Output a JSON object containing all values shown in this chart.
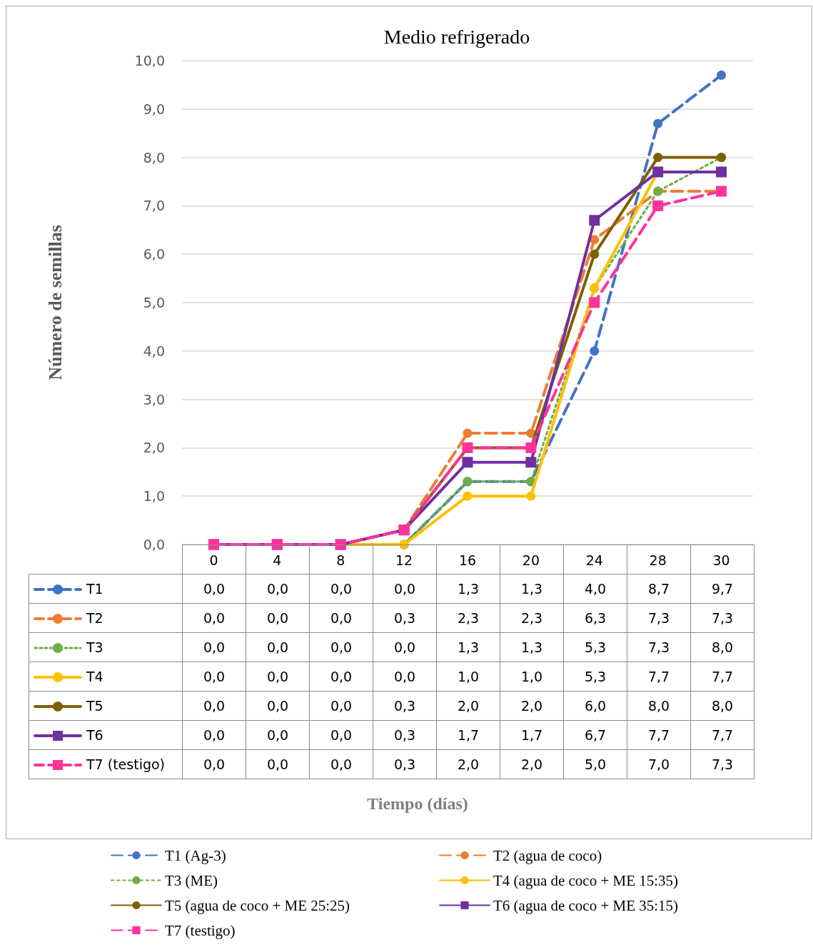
{
  "chart_data": {
    "type": "line",
    "title": "Medio refrigerado",
    "ylabel": "Número de semillas",
    "categories": [
      "0",
      "4",
      "8",
      "12",
      "16",
      "20",
      "24",
      "28",
      "30"
    ],
    "series": [
      {
        "name": "T1 (Ag-3)",
        "color": "#4472c4",
        "line_style": "dashed",
        "marker": "circle",
        "values": [
          null,
          null,
          0.0,
          0.0,
          1.3,
          1.3,
          4.0,
          8.7,
          9.7
        ],
        "value_labels": [
          "0,0",
          "0,0",
          "0,0",
          "0,0",
          "1,3",
          "1,3",
          "4,0",
          "8,7",
          "9,7"
        ]
      },
      {
        "name": "T2 (agua de coco)",
        "color": "#ed7d31",
        "line_style": "dashed",
        "marker": "circle",
        "values": [
          0.0,
          0.0,
          0.0,
          0.3,
          2.3,
          2.3,
          6.3,
          7.3,
          7.3
        ],
        "value_labels": [
          "0,0",
          "0,0",
          "0,0",
          "0,3",
          "2,3",
          "2,3",
          "6,3",
          "7,3",
          "7,3"
        ]
      },
      {
        "name": "T3 (ME)",
        "color": "#70ad47",
        "line_style": "dotted",
        "marker": "circle",
        "values": [
          null,
          null,
          0.0,
          0.0,
          1.3,
          1.3,
          5.3,
          7.3,
          8.0
        ],
        "value_labels": [
          "0,0",
          "0,0",
          "0,0",
          "0,0",
          "1,3",
          "1,3",
          "5,3",
          "7,3",
          "8,0"
        ]
      },
      {
        "name": "T4 (agua de coco + ME 15:35)",
        "color": "#ffc000",
        "line_style": "solid",
        "marker": "circle",
        "values": [
          0.0,
          0.0,
          0.0,
          0.0,
          1.0,
          1.0,
          5.3,
          7.7,
          7.7
        ],
        "value_labels": [
          "0,0",
          "0,0",
          "0,0",
          "0,0",
          "1,0",
          "1,0",
          "5,3",
          "7,7",
          "7,7"
        ]
      },
      {
        "name": "T5 (agua de coco + ME 25:25)",
        "color": "#7f6000",
        "line_style": "solid",
        "marker": "circle",
        "values": [
          null,
          null,
          0.0,
          0.3,
          2.0,
          2.0,
          6.0,
          8.0,
          8.0
        ],
        "value_labels": [
          "0,0",
          "0,0",
          "0,0",
          "0,3",
          "2,0",
          "2,0",
          "6,0",
          "8,0",
          "8,0"
        ]
      },
      {
        "name": "T6 (agua de coco + ME 35:15)",
        "color": "#7030a0",
        "line_style": "solid",
        "marker": "square",
        "values": [
          0.0,
          0.0,
          0.0,
          0.3,
          1.7,
          1.7,
          6.7,
          7.7,
          7.7
        ],
        "value_labels": [
          "0,0",
          "0,0",
          "0,0",
          "0,3",
          "1,7",
          "1,7",
          "6,7",
          "7,7",
          "7,7"
        ]
      },
      {
        "name": "T7 (testigo)",
        "color": "#ff3399",
        "line_style": "dashed",
        "marker": "square",
        "values": [
          0.0,
          0.0,
          0.0,
          0.3,
          2.0,
          2.0,
          5.0,
          7.0,
          7.3
        ],
        "value_labels": [
          "0,0",
          "0,0",
          "0,0",
          "0,3",
          "2,0",
          "2,0",
          "5,0",
          "7,0",
          "7,3"
        ]
      }
    ],
    "annotations": [
      "T1",
      "T2",
      "T3",
      "T4",
      "T5",
      "T6",
      "T7 (testigo)",
      "Tiempo (días)"
    ],
    "ylim": [
      0,
      10
    ],
    "yticks": [
      {
        "value": 0,
        "label": "0,0"
      },
      {
        "value": 1,
        "label": "1,0"
      },
      {
        "value": 2,
        "label": "2,0"
      },
      {
        "value": 3,
        "label": "3,0"
      },
      {
        "value": 4,
        "label": "4,0"
      },
      {
        "value": 5,
        "label": "5,0"
      },
      {
        "value": 6,
        "label": "6,0"
      },
      {
        "value": 7,
        "label": "7,0"
      },
      {
        "value": 8,
        "label": "8,0"
      },
      {
        "value": 9,
        "label": "9,0"
      },
      {
        "value": 10,
        "label": "10,0"
      }
    ],
    "grid": "y",
    "legend": "bottom"
  }
}
